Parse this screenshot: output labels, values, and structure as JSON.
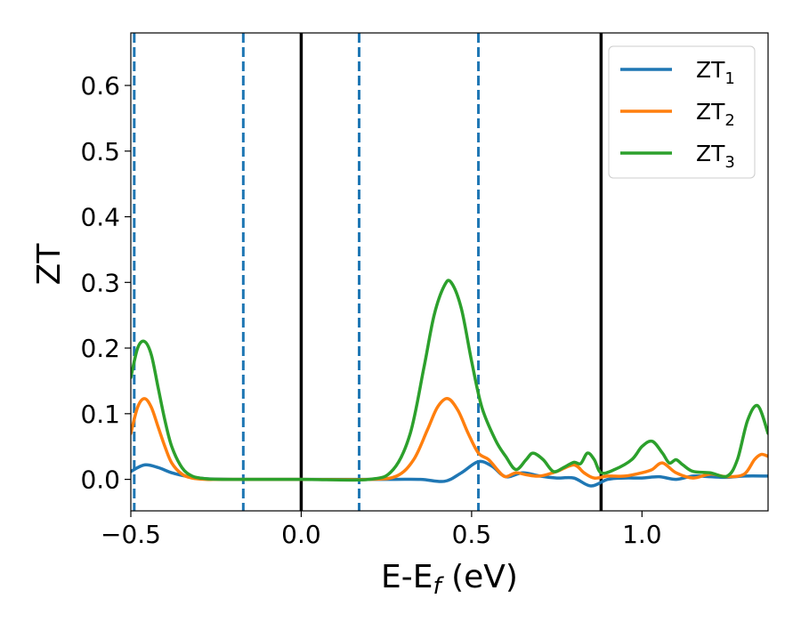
{
  "chart_data": {
    "type": "line",
    "xlabel": "E-E",
    "xlabel_sub": "f",
    "xlabel_unit": " (eV)",
    "ylabel": "ZT",
    "xlim": [
      -0.5,
      1.37
    ],
    "ylim": [
      -0.048,
      0.68
    ],
    "grid": false,
    "legend_position": "top-right",
    "xticks": [
      {
        "value": -0.5,
        "label": "−0.5"
      },
      {
        "value": 0.0,
        "label": "0.0"
      },
      {
        "value": 0.5,
        "label": "0.5"
      },
      {
        "value": 1.0,
        "label": "1.0"
      }
    ],
    "yticks": [
      {
        "value": 0.0,
        "label": "0.0"
      },
      {
        "value": 0.1,
        "label": "0.1"
      },
      {
        "value": 0.2,
        "label": "0.2"
      },
      {
        "value": 0.3,
        "label": "0.3"
      },
      {
        "value": 0.4,
        "label": "0.4"
      },
      {
        "value": 0.5,
        "label": "0.5"
      },
      {
        "value": 0.6,
        "label": "0.6"
      }
    ],
    "vertical_lines": [
      {
        "x": -0.49,
        "style": "dashed",
        "color": "#1f77b4"
      },
      {
        "x": -0.17,
        "style": "dashed",
        "color": "#1f77b4"
      },
      {
        "x": 0.17,
        "style": "dashed",
        "color": "#1f77b4"
      },
      {
        "x": 0.52,
        "style": "dashed",
        "color": "#1f77b4"
      },
      {
        "x": 0.0,
        "style": "solid",
        "color": "#000000"
      },
      {
        "x": 0.88,
        "style": "solid",
        "color": "#000000"
      }
    ],
    "series": [
      {
        "name": "ZT",
        "sub": "1",
        "color": "#1f77b4",
        "x": [
          -0.5,
          -0.46,
          -0.42,
          -0.38,
          -0.33,
          -0.28,
          -0.2,
          0.0,
          0.25,
          0.35,
          0.42,
          0.47,
          0.52,
          0.56,
          0.6,
          0.65,
          0.7,
          0.75,
          0.8,
          0.85,
          0.9,
          0.95,
          1.0,
          1.05,
          1.1,
          1.15,
          1.2,
          1.25,
          1.3,
          1.37
        ],
        "y": [
          0.012,
          0.022,
          0.018,
          0.01,
          0.004,
          0.001,
          0.0,
          0.0,
          0.0,
          0.0,
          -0.003,
          0.01,
          0.027,
          0.02,
          0.004,
          0.01,
          0.005,
          0.002,
          0.002,
          -0.01,
          0.0,
          0.002,
          0.002,
          0.004,
          0.0,
          0.005,
          0.004,
          0.003,
          0.005,
          0.005
        ]
      },
      {
        "name": "ZT",
        "sub": "2",
        "color": "#ff7f0e",
        "x": [
          -0.5,
          -0.48,
          -0.46,
          -0.44,
          -0.42,
          -0.4,
          -0.38,
          -0.35,
          -0.32,
          -0.28,
          -0.22,
          0.0,
          0.2,
          0.28,
          0.33,
          0.37,
          0.4,
          0.43,
          0.46,
          0.49,
          0.52,
          0.55,
          0.58,
          0.6,
          0.63,
          0.66,
          0.7,
          0.75,
          0.8,
          0.83,
          0.86,
          0.9,
          0.95,
          1.0,
          1.03,
          1.06,
          1.1,
          1.15,
          1.2,
          1.25,
          1.3,
          1.33,
          1.35,
          1.37
        ],
        "y": [
          0.07,
          0.11,
          0.123,
          0.11,
          0.08,
          0.05,
          0.025,
          0.008,
          0.002,
          0.0,
          0.0,
          0.0,
          0.0,
          0.005,
          0.03,
          0.075,
          0.11,
          0.123,
          0.105,
          0.07,
          0.04,
          0.03,
          0.012,
          0.004,
          0.01,
          0.007,
          0.005,
          0.012,
          0.022,
          0.01,
          0.002,
          0.005,
          0.005,
          0.01,
          0.015,
          0.025,
          0.01,
          0.002,
          0.008,
          0.004,
          0.008,
          0.03,
          0.038,
          0.035
        ]
      },
      {
        "name": "ZT",
        "sub": "3",
        "color": "#2ca02c",
        "x": [
          -0.5,
          -0.48,
          -0.46,
          -0.44,
          -0.42,
          -0.4,
          -0.38,
          -0.35,
          -0.32,
          -0.28,
          -0.22,
          0.0,
          0.2,
          0.27,
          0.32,
          0.36,
          0.39,
          0.42,
          0.44,
          0.47,
          0.5,
          0.53,
          0.57,
          0.6,
          0.63,
          0.66,
          0.68,
          0.71,
          0.74,
          0.77,
          0.8,
          0.82,
          0.84,
          0.86,
          0.88,
          0.92,
          0.97,
          1.0,
          1.03,
          1.06,
          1.08,
          1.1,
          1.12,
          1.15,
          1.2,
          1.25,
          1.28,
          1.31,
          1.34,
          1.37
        ],
        "y": [
          0.155,
          0.2,
          0.21,
          0.19,
          0.14,
          0.09,
          0.05,
          0.018,
          0.005,
          0.001,
          0.0,
          0.0,
          0.0,
          0.015,
          0.07,
          0.17,
          0.25,
          0.295,
          0.3,
          0.26,
          0.18,
          0.11,
          0.06,
          0.035,
          0.015,
          0.03,
          0.04,
          0.03,
          0.012,
          0.018,
          0.026,
          0.024,
          0.04,
          0.03,
          0.01,
          0.015,
          0.03,
          0.05,
          0.058,
          0.04,
          0.025,
          0.03,
          0.022,
          0.012,
          0.01,
          0.005,
          0.03,
          0.09,
          0.112,
          0.07
        ]
      }
    ]
  }
}
